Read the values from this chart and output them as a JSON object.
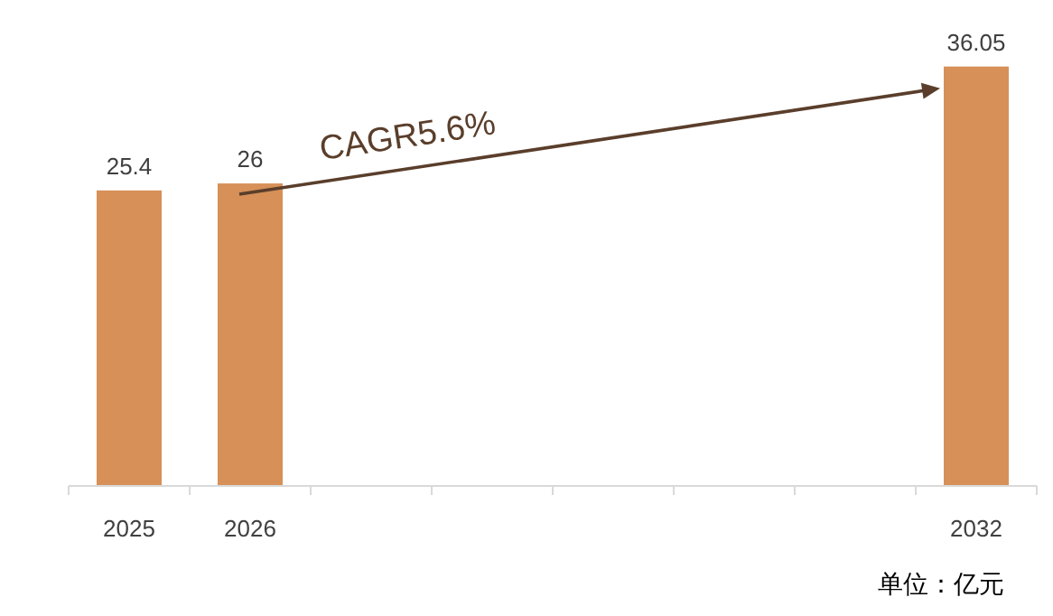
{
  "chart_data": {
    "type": "bar",
    "categories": [
      "2025",
      "2026",
      null,
      null,
      null,
      null,
      null,
      "2032"
    ],
    "values": [
      25.4,
      26,
      null,
      null,
      null,
      null,
      null,
      36.05
    ],
    "color": "#d69058",
    "data_labels": true,
    "grid": false,
    "annotations": [
      "CAGR5.6%",
      "单位：亿元"
    ]
  }
}
